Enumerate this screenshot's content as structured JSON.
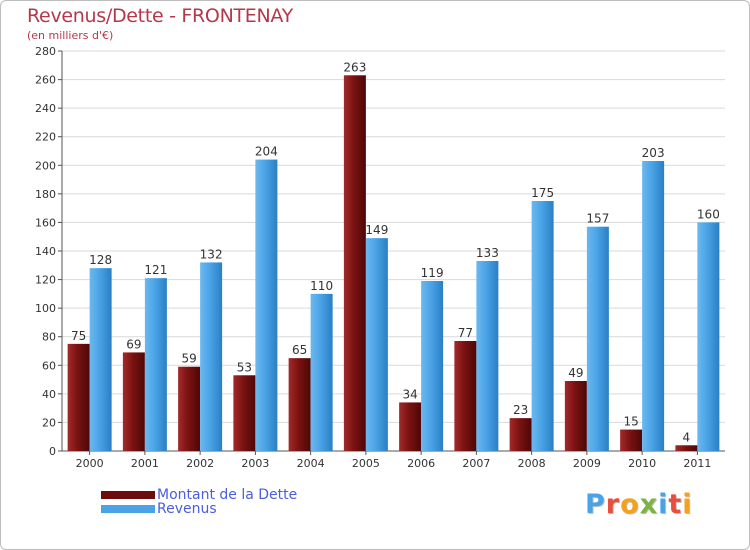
{
  "chart_data": {
    "type": "bar",
    "title": "Revenus/Dette - FRONTENAY",
    "subtitle": "(en milliers d'€)",
    "categories": [
      "2000",
      "2001",
      "2002",
      "2003",
      "2004",
      "2005",
      "2006",
      "2007",
      "2008",
      "2009",
      "2010",
      "2011"
    ],
    "series": [
      {
        "name": "Montant de la Dette",
        "color": "#7a1212",
        "values": [
          75,
          69,
          59,
          53,
          65,
          263,
          34,
          77,
          23,
          49,
          15,
          4
        ]
      },
      {
        "name": "Revenus",
        "color": "#4aa3e6",
        "values": [
          128,
          121,
          132,
          204,
          110,
          149,
          119,
          133,
          175,
          157,
          203,
          160
        ]
      }
    ],
    "yticks": [
      0,
      20,
      40,
      60,
      80,
      100,
      120,
      140,
      160,
      180,
      200,
      220,
      240,
      260,
      280
    ],
    "ylim": [
      0,
      280
    ],
    "grid": true,
    "legend_position": "bottom-left"
  },
  "logo": {
    "letters": [
      "P",
      "r",
      "o",
      "x",
      "i",
      "t",
      "i"
    ],
    "colors": [
      "#4aa3e6",
      "#e94e3c",
      "#f4a11d",
      "#7cb342",
      "#4aa3e6",
      "#e94e3c",
      "#f4a11d"
    ]
  }
}
